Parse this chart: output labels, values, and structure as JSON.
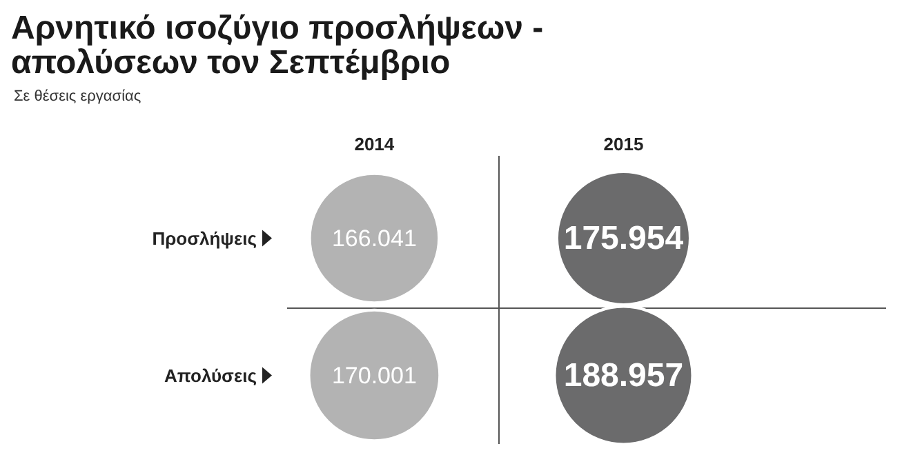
{
  "chart_data": {
    "type": "other",
    "title": "Αρνητικό ισοζύγιο προσλήψεων - απολύσεων τον Σεπτέμβριο",
    "subtitle": "Σε θέσεις εργασίας",
    "categories": [
      "2014",
      "2015"
    ],
    "series": [
      {
        "name": "Προσλήψεις",
        "colors": [
          "#b3b3b3",
          "#6b6b6c"
        ],
        "values": [
          166041,
          175954
        ],
        "value_labels": [
          "166.041",
          "175.954"
        ]
      },
      {
        "name": "Απολύσεις",
        "colors": [
          "#b3b3b3",
          "#6b6b6c"
        ],
        "values": [
          170001,
          188957
        ],
        "value_labels": [
          "170.001",
          "188.957"
        ]
      }
    ]
  }
}
